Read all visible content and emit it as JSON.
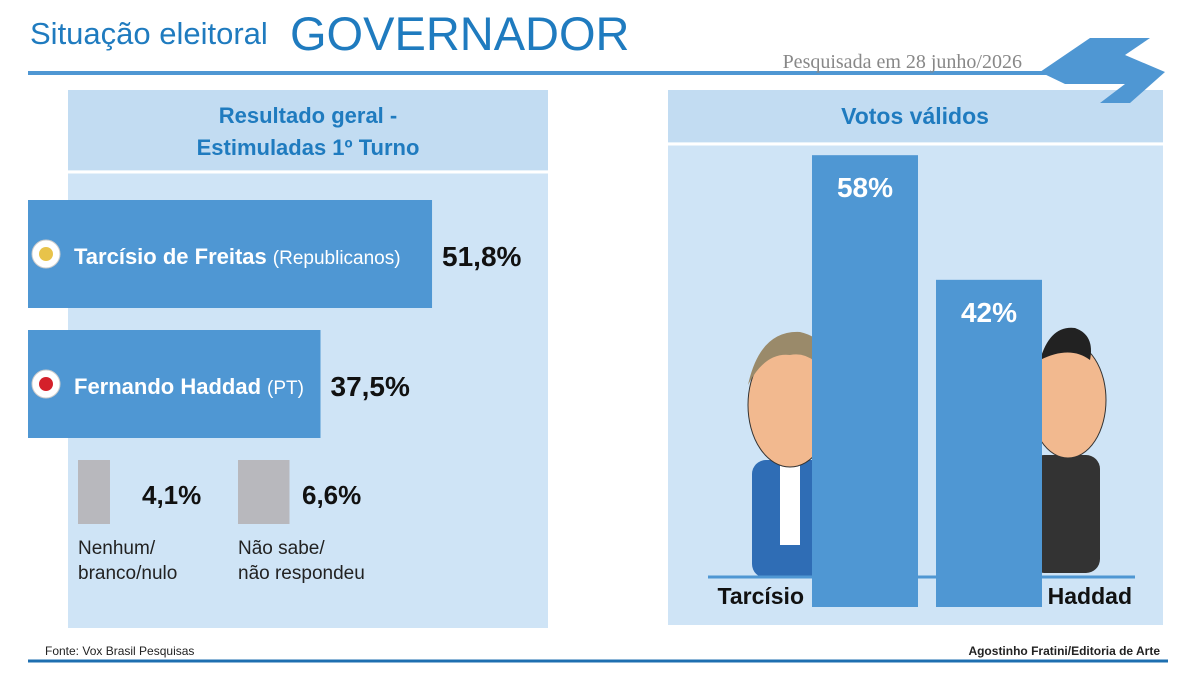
{
  "header": {
    "kicker": "Situação eleitoral",
    "title": "GOVERNADOR",
    "date": "Pesquisada em 28 junho/2026"
  },
  "chart_data": [
    {
      "type": "hbar",
      "title": "Resultado geral -\nEstimuladas 1º Turno",
      "categories": [
        "Tarcísio de Freitas",
        "Fernando Haddad",
        "Nenhum/\nbranco/nulo",
        "Não sabe/\nnão respondeu"
      ],
      "parties": [
        "(Republicanos)",
        "(PT)",
        null,
        null
      ],
      "values": [
        51.8,
        37.5,
        4.1,
        6.6
      ],
      "value_labels": [
        "51,8%",
        "37,5%",
        "4,1%",
        "6,6%"
      ],
      "colors": [
        "#4f97d3",
        "#4f97d3",
        "#b8b8bd",
        "#b8b8bd"
      ],
      "xlim": [
        0,
        100
      ]
    },
    {
      "type": "bar",
      "title": "Votos válidos",
      "categories": [
        "Tarcísio",
        "Haddad"
      ],
      "values": [
        58,
        42
      ],
      "value_labels": [
        "58%",
        "42%"
      ],
      "color": "#4f97d3",
      "ylim": [
        0,
        100
      ]
    }
  ],
  "footer": {
    "source": "Fonte: Vox Brasil Pesquisas",
    "credit": "Agostinho Fratini/Editoria de Arte"
  }
}
